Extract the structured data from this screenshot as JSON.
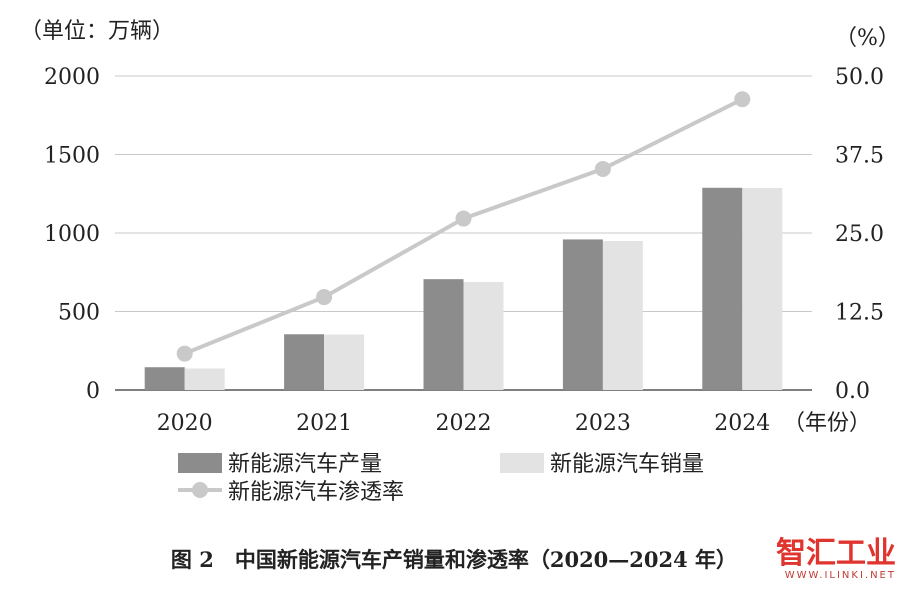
{
  "chart_data": {
    "type": "bar",
    "left_unit": "（单位：万辆）",
    "right_unit": "（%）",
    "x_unit": "（年份）",
    "categories": [
      "2020",
      "2021",
      "2022",
      "2023",
      "2024"
    ],
    "y_ticks": [
      "0",
      "500",
      "1000",
      "1500",
      "2000"
    ],
    "y2_ticks": [
      "0.0",
      "12.5",
      "25.0",
      "37.5",
      "50.0"
    ],
    "ylim": [
      0,
      2000
    ],
    "y2lim": [
      0,
      50
    ],
    "grid": true,
    "legend_position": "bottom",
    "series": [
      {
        "name": "新能源汽车产量",
        "type": "bar",
        "axis": "left",
        "color": "#8c8c8c",
        "values": [
          145,
          355,
          706,
          959,
          1288
        ]
      },
      {
        "name": "新能源汽车销量",
        "type": "bar",
        "axis": "left",
        "color": "#e3e3e3",
        "values": [
          137,
          353,
          688,
          949,
          1287
        ]
      },
      {
        "name": "新能源汽车渗透率",
        "type": "line",
        "axis": "right",
        "color": "#c9c9c9",
        "values": [
          5.8,
          14.8,
          27.3,
          35.2,
          46.3
        ]
      }
    ]
  },
  "caption": "图 2　中国新能源汽车产销量和渗透率（2020—2024 年）",
  "watermark": {
    "logo": "智汇工业",
    "url": "WWW.ILINKI.NET"
  }
}
